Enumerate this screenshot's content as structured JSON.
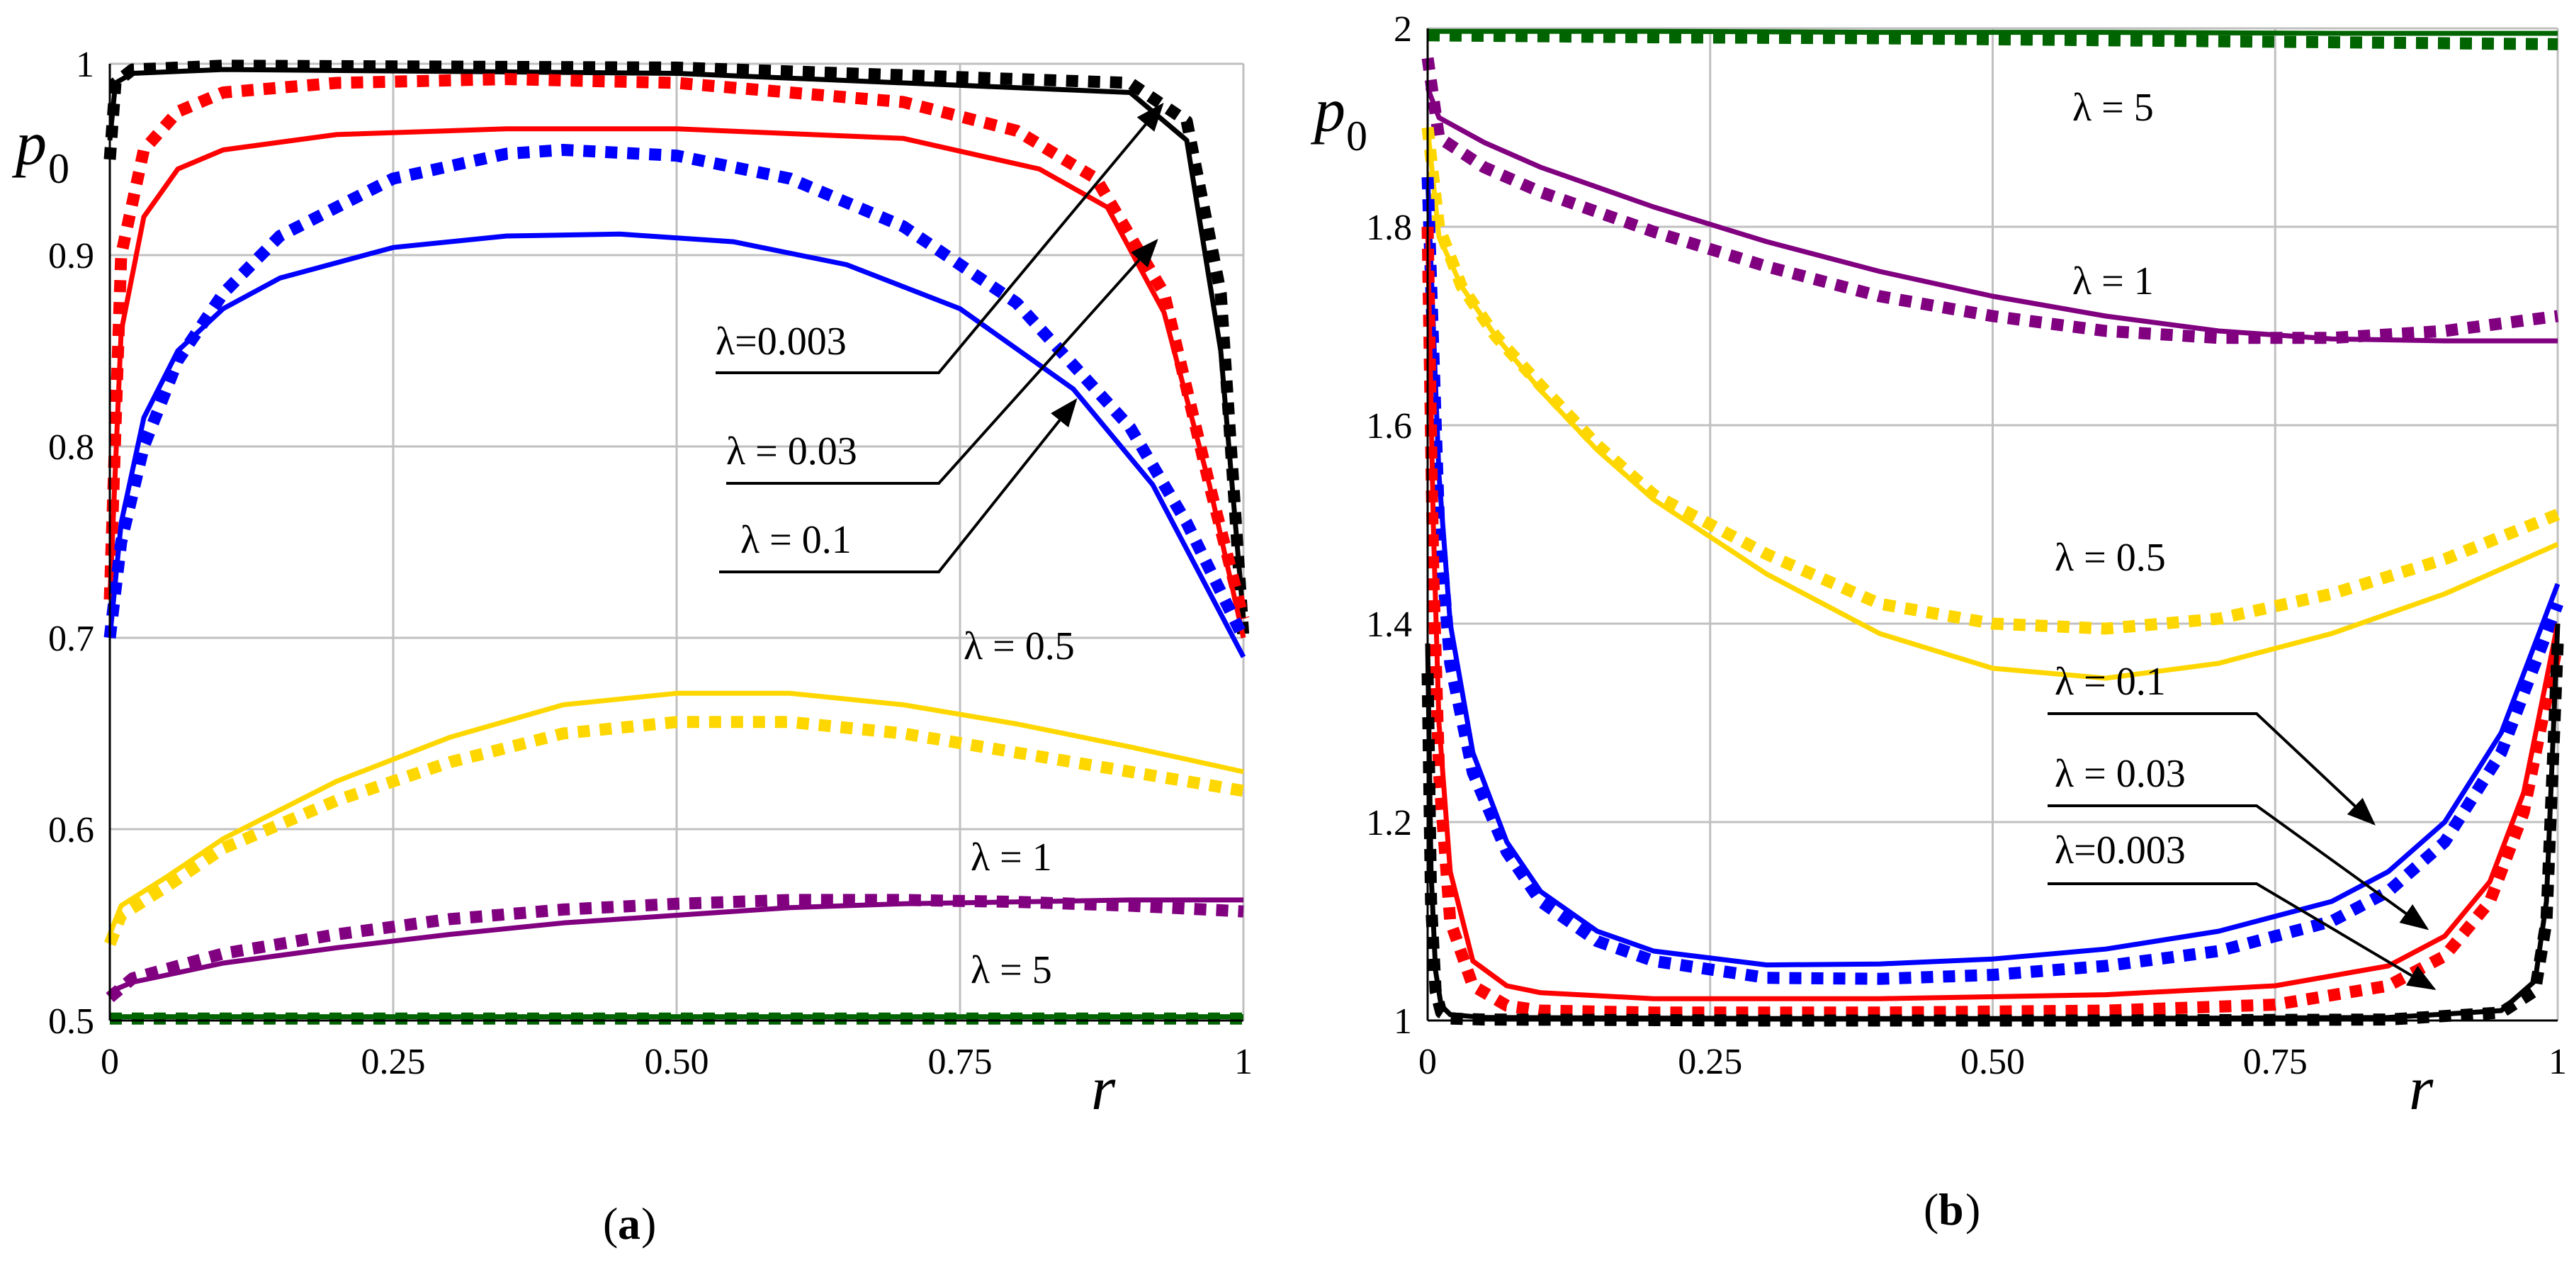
{
  "colors": {
    "black": "#000000",
    "red": "#ff0000",
    "blue": "#0000ff",
    "yellow": "#ffd700",
    "purple": "#800080",
    "green": "#006400",
    "grid": "#c0c0c0"
  },
  "chart_data": [
    {
      "id": "a",
      "type": "line",
      "panel_label": "a",
      "xlabel": "r",
      "ylabel": "p",
      "ylabel_sub": "0",
      "xlim": [
        0,
        1
      ],
      "ylim": [
        0.5,
        1
      ],
      "xticks": [
        0,
        0.25,
        0.5,
        0.75,
        1
      ],
      "xtick_labels": [
        "0",
        "0.25",
        "0.50",
        "0.75",
        "1"
      ],
      "yticks": [
        0.5,
        0.6,
        0.7,
        0.8,
        0.9,
        1
      ],
      "ytick_labels": [
        "0.5",
        "0.6",
        "0.7",
        "0.8",
        "0.9",
        "1"
      ],
      "grid": true,
      "series": [
        {
          "name": "λ = 0.003",
          "color": "black",
          "style": "solid",
          "x": [
            0,
            0.005,
            0.02,
            0.1,
            0.5,
            0.9,
            0.95,
            0.98,
            1
          ],
          "y": [
            0.96,
            0.99,
            0.995,
            0.997,
            0.995,
            0.985,
            0.96,
            0.85,
            0.71
          ]
        },
        {
          "name": "λ = 0.003",
          "color": "black",
          "style": "dotted",
          "x": [
            0,
            0.005,
            0.02,
            0.1,
            0.5,
            0.9,
            0.95,
            0.98,
            1
          ],
          "y": [
            0.95,
            0.99,
            0.997,
            0.999,
            0.998,
            0.99,
            0.97,
            0.88,
            0.7
          ]
        },
        {
          "name": "λ = 0.03",
          "color": "red",
          "style": "solid",
          "x": [
            0,
            0.01,
            0.03,
            0.06,
            0.1,
            0.2,
            0.35,
            0.5,
            0.7,
            0.82,
            0.88,
            0.93,
            0.97,
            1
          ],
          "y": [
            0.72,
            0.86,
            0.92,
            0.945,
            0.955,
            0.963,
            0.966,
            0.966,
            0.961,
            0.945,
            0.925,
            0.87,
            0.78,
            0.7
          ]
        },
        {
          "name": "λ = 0.03",
          "color": "red",
          "style": "dotted",
          "x": [
            0,
            0.01,
            0.03,
            0.06,
            0.1,
            0.2,
            0.35,
            0.5,
            0.7,
            0.8,
            0.87,
            0.93,
            0.97,
            1
          ],
          "y": [
            0.72,
            0.9,
            0.955,
            0.975,
            0.985,
            0.99,
            0.992,
            0.99,
            0.98,
            0.965,
            0.94,
            0.88,
            0.78,
            0.71
          ]
        },
        {
          "name": "λ = 0.1",
          "color": "blue",
          "style": "solid",
          "x": [
            0,
            0.01,
            0.03,
            0.06,
            0.1,
            0.15,
            0.25,
            0.35,
            0.45,
            0.55,
            0.65,
            0.75,
            0.85,
            0.92,
            1
          ],
          "y": [
            0.7,
            0.76,
            0.815,
            0.85,
            0.872,
            0.888,
            0.904,
            0.91,
            0.911,
            0.907,
            0.895,
            0.872,
            0.83,
            0.78,
            0.69
          ]
        },
        {
          "name": "λ = 0.1",
          "color": "blue",
          "style": "dotted",
          "x": [
            0,
            0.01,
            0.03,
            0.06,
            0.1,
            0.15,
            0.25,
            0.35,
            0.4,
            0.5,
            0.6,
            0.7,
            0.8,
            0.9,
            0.95,
            1
          ],
          "y": [
            0.7,
            0.75,
            0.8,
            0.845,
            0.88,
            0.91,
            0.94,
            0.953,
            0.955,
            0.952,
            0.94,
            0.915,
            0.875,
            0.81,
            0.76,
            0.7
          ]
        },
        {
          "name": "λ = 0.5",
          "color": "yellow",
          "style": "solid",
          "x": [
            0,
            0.01,
            0.05,
            0.1,
            0.2,
            0.3,
            0.4,
            0.5,
            0.6,
            0.7,
            0.8,
            0.9,
            1
          ],
          "y": [
            0.545,
            0.56,
            0.575,
            0.595,
            0.625,
            0.648,
            0.665,
            0.671,
            0.671,
            0.665,
            0.655,
            0.643,
            0.63
          ]
        },
        {
          "name": "λ = 0.5",
          "color": "yellow",
          "style": "dotted",
          "x": [
            0,
            0.01,
            0.05,
            0.1,
            0.2,
            0.3,
            0.4,
            0.5,
            0.6,
            0.7,
            0.8,
            0.9,
            1
          ],
          "y": [
            0.54,
            0.555,
            0.57,
            0.59,
            0.615,
            0.635,
            0.65,
            0.656,
            0.656,
            0.65,
            0.64,
            0.63,
            0.62
          ]
        },
        {
          "name": "λ = 1",
          "color": "purple",
          "style": "solid",
          "x": [
            0,
            0.02,
            0.1,
            0.2,
            0.3,
            0.4,
            0.5,
            0.6,
            0.7,
            0.8,
            0.9,
            1
          ],
          "y": [
            0.515,
            0.52,
            0.53,
            0.538,
            0.545,
            0.551,
            0.555,
            0.559,
            0.561,
            0.562,
            0.563,
            0.563
          ]
        },
        {
          "name": "λ = 1",
          "color": "purple",
          "style": "dotted",
          "x": [
            0,
            0.02,
            0.1,
            0.2,
            0.3,
            0.4,
            0.5,
            0.6,
            0.7,
            0.8,
            0.9,
            1
          ],
          "y": [
            0.512,
            0.522,
            0.535,
            0.545,
            0.553,
            0.558,
            0.561,
            0.563,
            0.563,
            0.562,
            0.56,
            0.557
          ]
        },
        {
          "name": "λ = 5",
          "color": "green",
          "style": "solid",
          "x": [
            0,
            0.2,
            0.4,
            0.6,
            0.8,
            1
          ],
          "y": [
            0.502,
            0.502,
            0.502,
            0.502,
            0.502,
            0.502
          ]
        },
        {
          "name": "λ = 5",
          "color": "green",
          "style": "dotted",
          "x": [
            0,
            0.2,
            0.4,
            0.6,
            0.8,
            1
          ],
          "y": [
            0.501,
            0.501,
            0.501,
            0.501,
            0.501,
            0.501
          ]
        }
      ],
      "annotations": [
        {
          "text": "λ=0.003",
          "bold_italic": false
        },
        {
          "text": "λ = 0.03"
        },
        {
          "text": "λ = 0.1"
        },
        {
          "text": "λ = 0.5"
        },
        {
          "text": "λ = 1"
        },
        {
          "text": "λ = 5"
        }
      ]
    },
    {
      "id": "b",
      "type": "line",
      "panel_label": "b",
      "xlabel": "r",
      "ylabel": "p",
      "ylabel_sub": "0",
      "xlim": [
        0,
        1
      ],
      "ylim": [
        1,
        2
      ],
      "xticks": [
        0,
        0.25,
        0.5,
        0.75,
        1
      ],
      "xtick_labels": [
        "0",
        "0.25",
        "0.50",
        "0.75",
        "1"
      ],
      "yticks": [
        1,
        1.2,
        1.4,
        1.6,
        1.8,
        2
      ],
      "ytick_labels": [
        "1",
        "1.2",
        "1.4",
        "1.6",
        "1.8",
        "2"
      ],
      "grid": true,
      "series": [
        {
          "name": "λ = 5",
          "color": "green",
          "style": "solid",
          "x": [
            0,
            0.2,
            0.4,
            0.6,
            0.8,
            1
          ],
          "y": [
            1.997,
            1.997,
            1.996,
            1.996,
            1.995,
            1.995
          ]
        },
        {
          "name": "λ = 5",
          "color": "green",
          "style": "dotted",
          "x": [
            0,
            0.2,
            0.4,
            0.6,
            0.8,
            1
          ],
          "y": [
            1.993,
            1.991,
            1.99,
            1.988,
            1.986,
            1.984
          ]
        },
        {
          "name": "λ = 1",
          "color": "purple",
          "style": "solid",
          "x": [
            0,
            0.01,
            0.05,
            0.1,
            0.2,
            0.3,
            0.4,
            0.5,
            0.6,
            0.7,
            0.8,
            0.9,
            1
          ],
          "y": [
            1.94,
            1.91,
            1.885,
            1.86,
            1.82,
            1.785,
            1.755,
            1.73,
            1.71,
            1.695,
            1.687,
            1.685,
            1.685
          ]
        },
        {
          "name": "λ = 1",
          "color": "purple",
          "style": "dotted",
          "x": [
            0,
            0.01,
            0.05,
            0.1,
            0.2,
            0.3,
            0.4,
            0.5,
            0.6,
            0.7,
            0.8,
            0.9,
            1
          ],
          "y": [
            1.97,
            1.89,
            1.86,
            1.835,
            1.795,
            1.76,
            1.73,
            1.71,
            1.695,
            1.688,
            1.688,
            1.695,
            1.71
          ]
        },
        {
          "name": "λ = 0.5",
          "color": "yellow",
          "style": "solid",
          "x": [
            0,
            0.01,
            0.03,
            0.06,
            0.1,
            0.15,
            0.2,
            0.3,
            0.4,
            0.5,
            0.6,
            0.7,
            0.8,
            0.9,
            1
          ],
          "y": [
            1.9,
            1.79,
            1.74,
            1.69,
            1.635,
            1.575,
            1.525,
            1.45,
            1.39,
            1.355,
            1.345,
            1.36,
            1.39,
            1.43,
            1.48
          ]
        },
        {
          "name": "λ = 0.5",
          "color": "yellow",
          "style": "dotted",
          "x": [
            0,
            0.01,
            0.03,
            0.06,
            0.1,
            0.15,
            0.2,
            0.3,
            0.4,
            0.5,
            0.6,
            0.7,
            0.8,
            0.9,
            1
          ],
          "y": [
            1.9,
            1.8,
            1.74,
            1.69,
            1.64,
            1.58,
            1.53,
            1.47,
            1.42,
            1.4,
            1.395,
            1.405,
            1.43,
            1.465,
            1.51
          ]
        },
        {
          "name": "λ = 0.1",
          "color": "blue",
          "style": "solid",
          "x": [
            0,
            0.01,
            0.02,
            0.04,
            0.07,
            0.1,
            0.15,
            0.2,
            0.3,
            0.4,
            0.5,
            0.6,
            0.7,
            0.8,
            0.85,
            0.9,
            0.95,
            1
          ],
          "y": [
            1.85,
            1.55,
            1.4,
            1.27,
            1.18,
            1.13,
            1.09,
            1.07,
            1.056,
            1.057,
            1.062,
            1.072,
            1.09,
            1.12,
            1.15,
            1.2,
            1.29,
            1.44
          ]
        },
        {
          "name": "λ = 0.1",
          "color": "blue",
          "style": "dotted",
          "x": [
            0,
            0.01,
            0.02,
            0.04,
            0.07,
            0.1,
            0.15,
            0.2,
            0.3,
            0.4,
            0.5,
            0.6,
            0.7,
            0.8,
            0.85,
            0.9,
            0.95,
            1
          ],
          "y": [
            1.85,
            1.5,
            1.36,
            1.25,
            1.17,
            1.12,
            1.08,
            1.06,
            1.043,
            1.042,
            1.046,
            1.055,
            1.07,
            1.1,
            1.13,
            1.18,
            1.27,
            1.42
          ]
        },
        {
          "name": "λ = 0.03",
          "color": "red",
          "style": "solid",
          "x": [
            0,
            0.005,
            0.01,
            0.02,
            0.04,
            0.07,
            0.1,
            0.2,
            0.4,
            0.6,
            0.75,
            0.85,
            0.9,
            0.94,
            0.97,
            1
          ],
          "y": [
            1.8,
            1.5,
            1.3,
            1.15,
            1.06,
            1.035,
            1.028,
            1.022,
            1.022,
            1.026,
            1.035,
            1.055,
            1.085,
            1.14,
            1.23,
            1.4
          ]
        },
        {
          "name": "λ = 0.03",
          "color": "red",
          "style": "dotted",
          "x": [
            0,
            0.005,
            0.01,
            0.02,
            0.04,
            0.07,
            0.1,
            0.2,
            0.4,
            0.6,
            0.75,
            0.85,
            0.9,
            0.94,
            0.97,
            1
          ],
          "y": [
            1.8,
            1.45,
            1.25,
            1.1,
            1.035,
            1.015,
            1.01,
            1.008,
            1.008,
            1.01,
            1.016,
            1.035,
            1.065,
            1.12,
            1.21,
            1.38
          ]
        },
        {
          "name": "λ = 0.003",
          "color": "black",
          "style": "solid",
          "x": [
            0,
            0.003,
            0.007,
            0.012,
            0.02,
            0.05,
            0.3,
            0.6,
            0.85,
            0.95,
            0.98,
            0.99,
            1
          ],
          "y": [
            1.38,
            1.15,
            1.05,
            1.015,
            1.006,
            1.003,
            1.002,
            1.002,
            1.003,
            1.01,
            1.04,
            1.12,
            1.4
          ]
        },
        {
          "name": "λ = 0.003",
          "color": "black",
          "style": "dotted",
          "x": [
            0,
            0.003,
            0.007,
            0.012,
            0.02,
            0.05,
            0.3,
            0.6,
            0.85,
            0.95,
            0.98,
            0.99,
            1
          ],
          "y": [
            1.35,
            1.12,
            1.03,
            1.008,
            1.002,
            1.001,
            1.0,
            1.0,
            1.001,
            1.008,
            1.03,
            1.1,
            1.38
          ]
        }
      ],
      "annotations": [
        {
          "text": "λ = 5"
        },
        {
          "text": "λ = 1"
        },
        {
          "text": "λ = 0.5"
        },
        {
          "text": "λ = 0.1"
        },
        {
          "text": "λ = 0.03"
        },
        {
          "text": "λ=0.003"
        }
      ]
    }
  ]
}
